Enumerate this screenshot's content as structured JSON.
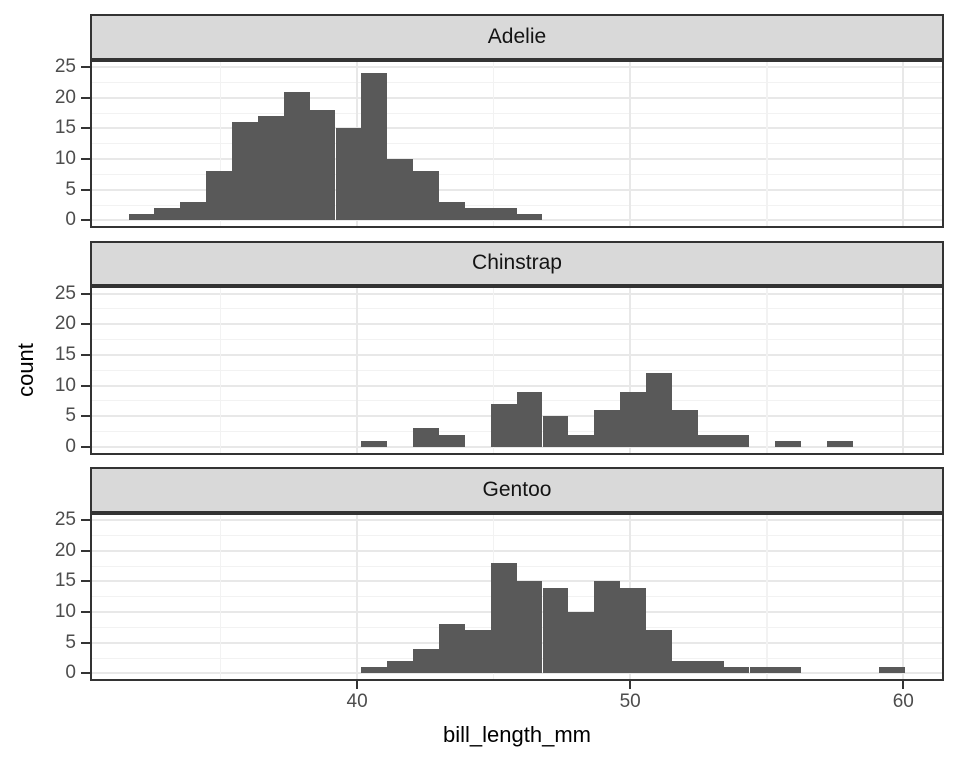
{
  "chart_data": {
    "type": "histogram",
    "faceting": {
      "variable": "species",
      "layout": "rows"
    },
    "xlabel": "bill_length_mm",
    "ylabel": "count",
    "bin_width": 0.948,
    "x_ticks": [
      40,
      50,
      60
    ],
    "x_tick_labels": [
      "40",
      "50",
      "60"
    ],
    "x_minor_ticks": [
      35,
      45,
      55
    ],
    "y_ticks": [
      0,
      5,
      10,
      15,
      20,
      25
    ],
    "y_tick_labels": [
      "0",
      "5",
      "10",
      "15",
      "20",
      "25"
    ],
    "y_minor_ticks": [
      2.5,
      7.5,
      12.5,
      17.5,
      22.5
    ],
    "x_domain": [
      30.22,
      61.49
    ],
    "y_domain": [
      -1.25,
      26.25
    ],
    "grid": "on",
    "facets": [
      {
        "label": "Adelie",
        "bin_starts": [
          31.63,
          32.57,
          33.52,
          34.47,
          35.42,
          36.37,
          37.31,
          38.26,
          39.21,
          40.16,
          41.1,
          42.05,
          43.0,
          43.95,
          44.89,
          45.84
        ],
        "counts": [
          1,
          2,
          3,
          8,
          16,
          17,
          21,
          18,
          15,
          24,
          10,
          8,
          3,
          2,
          2,
          1
        ]
      },
      {
        "label": "Chinstrap",
        "bin_starts": [
          40.16,
          41.1,
          42.05,
          43.0,
          43.95,
          44.89,
          45.84,
          46.79,
          47.74,
          48.68,
          49.63,
          50.58,
          51.52,
          52.47,
          53.42,
          54.37,
          55.31,
          56.26,
          57.21
        ],
        "counts": [
          1,
          0,
          3,
          2,
          0,
          7,
          9,
          5,
          2,
          6,
          9,
          12,
          6,
          2,
          2,
          0,
          1,
          0,
          1
        ]
      },
      {
        "label": "Gentoo",
        "bin_starts": [
          40.16,
          41.1,
          42.05,
          43.0,
          43.95,
          44.89,
          45.84,
          46.79,
          47.74,
          48.68,
          49.63,
          50.58,
          51.52,
          52.47,
          53.42,
          54.37,
          55.31,
          56.26,
          57.21,
          58.16,
          59.11
        ],
        "counts": [
          1,
          2,
          4,
          8,
          7,
          18,
          15,
          14,
          10,
          15,
          14,
          7,
          2,
          2,
          1,
          1,
          1,
          0,
          0,
          0,
          1
        ]
      }
    ],
    "colors": {
      "bar": "#595959",
      "strip_background": "#d9d9d9",
      "panel_border": "#333333",
      "grid_major": "#e8e8e8",
      "grid_minor": "#f2f2f2",
      "tick_text": "#4d4d4d",
      "title_text": "#000000"
    }
  }
}
